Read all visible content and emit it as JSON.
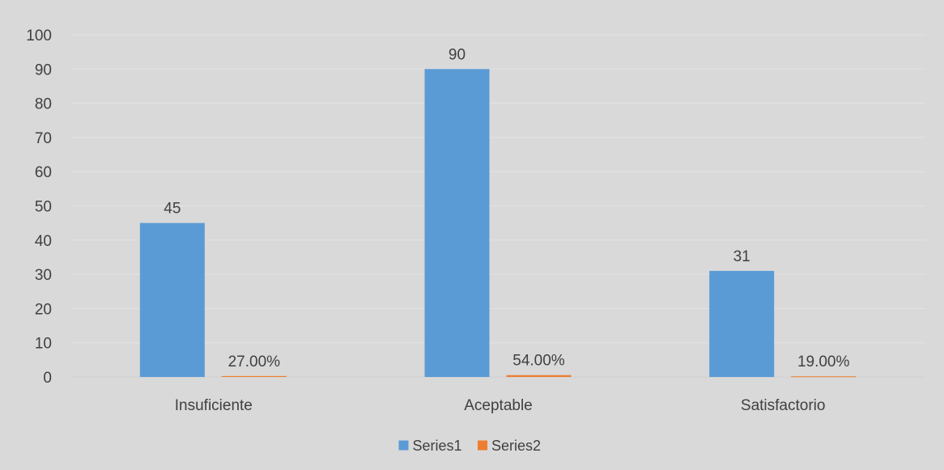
{
  "chart_data": {
    "type": "bar",
    "categories": [
      "Insuficiente",
      "Aceptable",
      "Satisfactorio"
    ],
    "series": [
      {
        "name": "Series1",
        "values": [
          45,
          90,
          31
        ],
        "data_labels": [
          "45",
          "90",
          "31"
        ],
        "color": "#5b9bd5"
      },
      {
        "name": "Series2",
        "values": [
          0.27,
          0.54,
          0.19
        ],
        "data_labels": [
          "27.00%",
          "54.00%",
          "19.00%"
        ],
        "color": "#ed7d31"
      }
    ],
    "y_ticks": [
      "0",
      "10",
      "20",
      "30",
      "40",
      "50",
      "60",
      "70",
      "80",
      "90",
      "100"
    ],
    "ylim": [
      0,
      100
    ],
    "grid": true,
    "legend": "bottom-center",
    "background_color": "#d9d9d9",
    "gridline_color": "#e3e3e3"
  }
}
